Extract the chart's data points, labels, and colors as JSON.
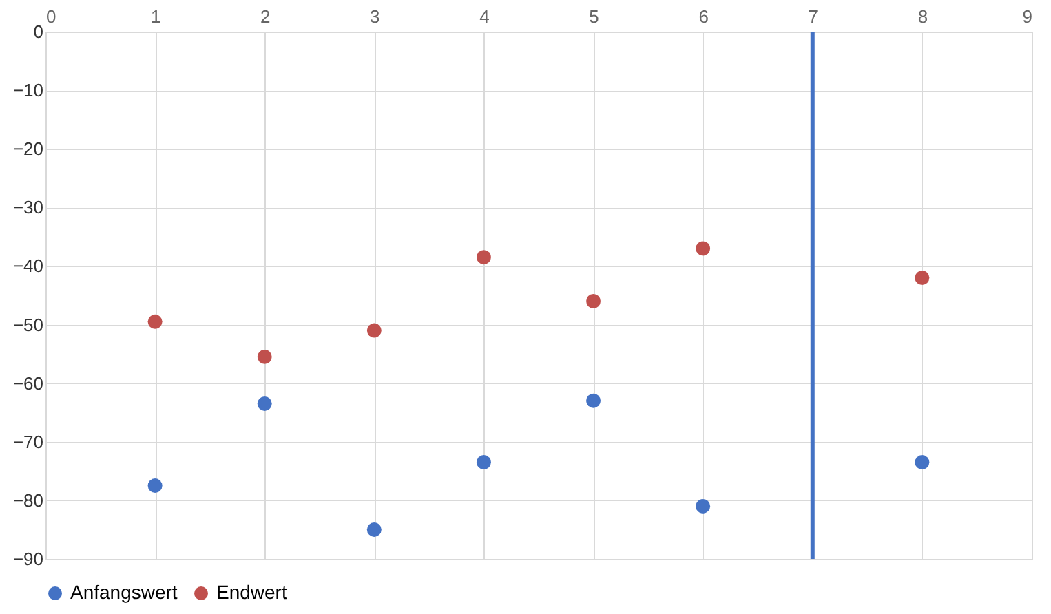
{
  "chart_data": {
    "type": "scatter",
    "x": [
      1,
      2,
      3,
      4,
      5,
      6,
      8
    ],
    "series": [
      {
        "name": "Anfangswert",
        "color": "#4472c4",
        "values": [
          -77.5,
          -63.5,
          -85,
          -73.5,
          -63,
          -81,
          -73.5
        ]
      },
      {
        "name": "Endwert",
        "color": "#c0504d",
        "values": [
          -49.5,
          -55.5,
          -51,
          -38.5,
          -46,
          -37,
          -42
        ]
      }
    ],
    "xlim": [
      0,
      9
    ],
    "xticks": [
      0,
      1,
      2,
      3,
      4,
      5,
      6,
      7,
      8,
      9
    ],
    "ylim": [
      -90,
      0
    ],
    "yticks": [
      0,
      -10,
      -20,
      -30,
      -40,
      -50,
      -60,
      -70,
      -80,
      -90
    ],
    "ref_lines": [
      {
        "axis": "x",
        "value": 7,
        "color": "#4472c4"
      }
    ],
    "grid": true,
    "legend": "bottom",
    "marker": "circle"
  }
}
